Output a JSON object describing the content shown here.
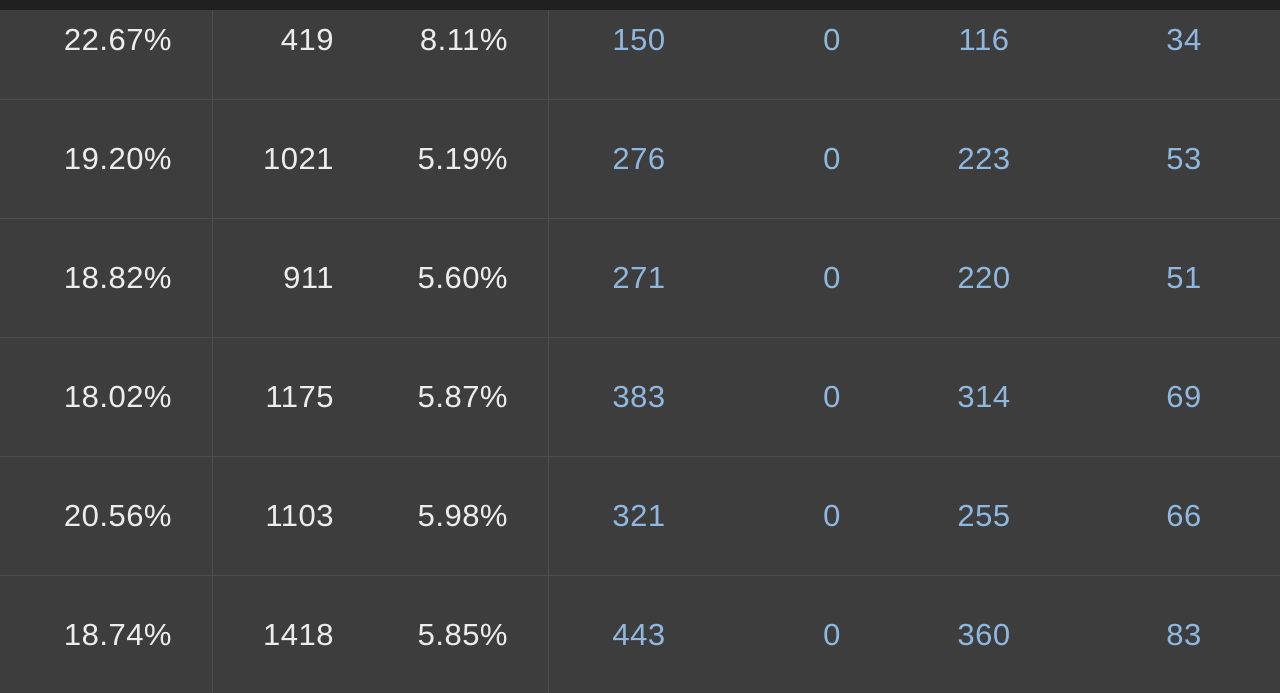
{
  "table": {
    "rows": [
      [
        "22.67%",
        "419",
        "8.11%",
        "150",
        "0",
        "116",
        "34"
      ],
      [
        "19.20%",
        "1021",
        "5.19%",
        "276",
        "0",
        "223",
        "53"
      ],
      [
        "18.82%",
        "911",
        "5.60%",
        "271",
        "0",
        "220",
        "51"
      ],
      [
        "18.02%",
        "1175",
        "5.87%",
        "383",
        "0",
        "314",
        "69"
      ],
      [
        "20.56%",
        "1103",
        "5.98%",
        "321",
        "0",
        "255",
        "66"
      ],
      [
        "18.74%",
        "1418",
        "5.85%",
        "443",
        "0",
        "360",
        "83"
      ]
    ]
  },
  "colors": {
    "background": "#3d3d3d",
    "text_white": "#ececec",
    "text_blue": "#8fb8e0",
    "divider": "#4f4f4f",
    "top_bar": "#202020"
  }
}
